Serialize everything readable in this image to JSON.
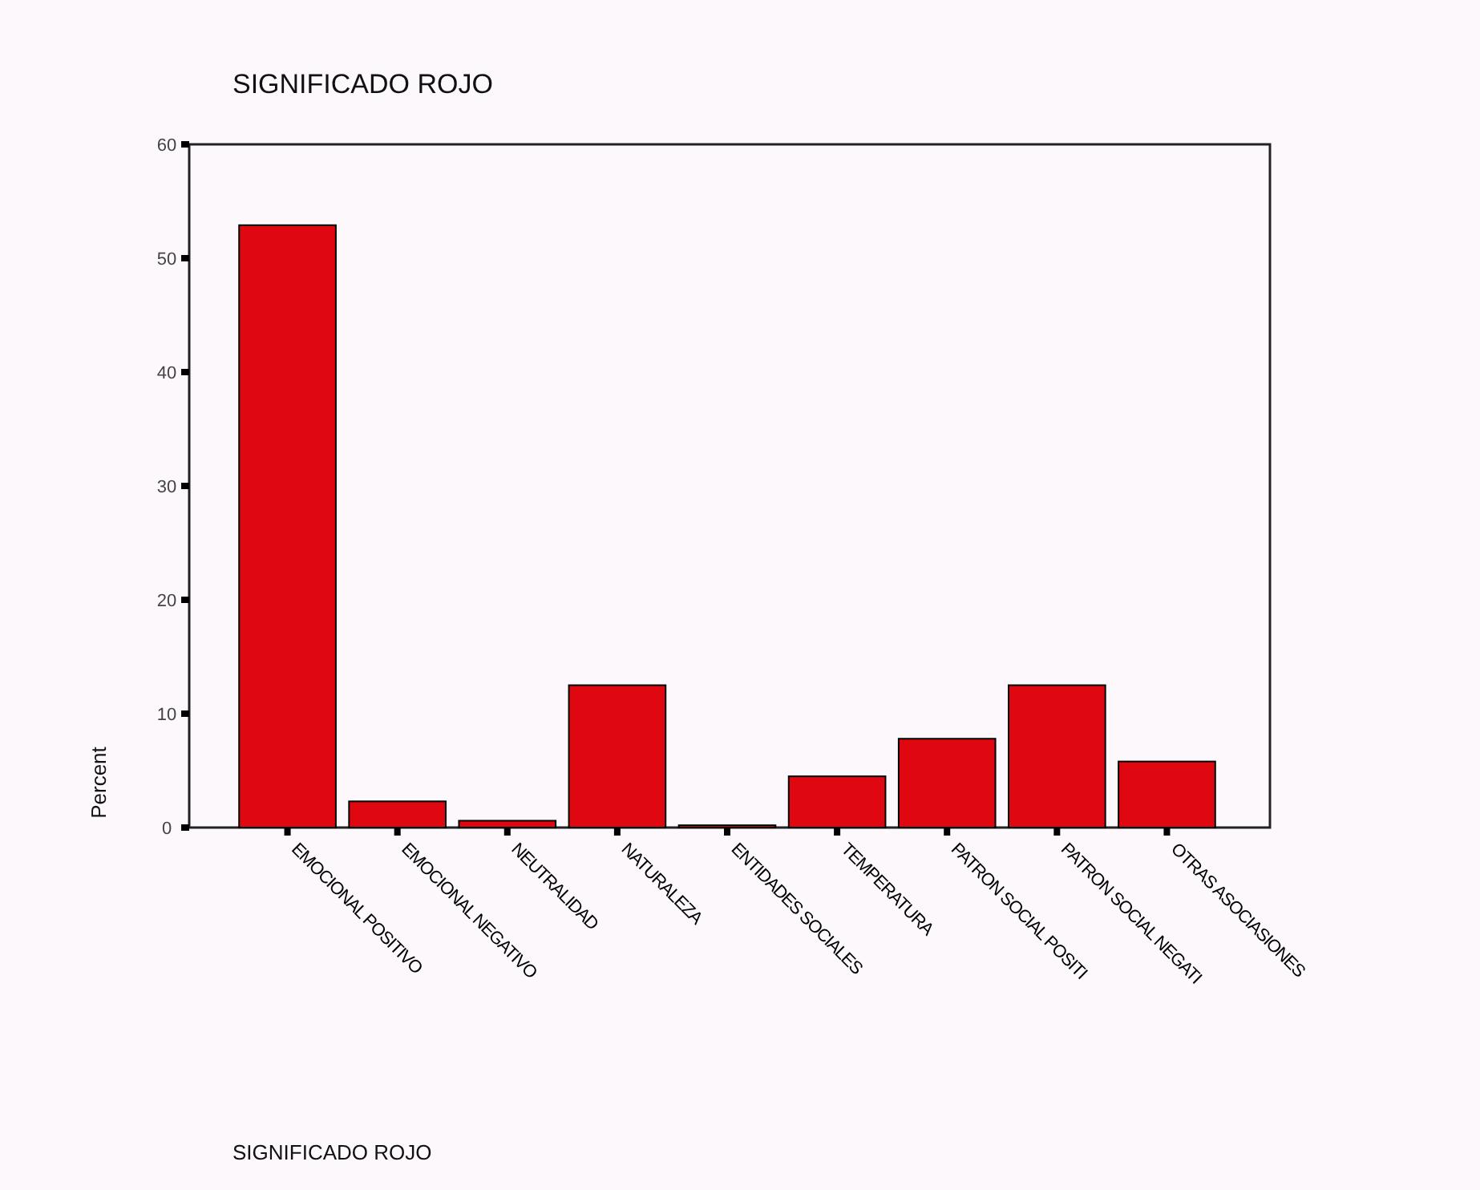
{
  "chart_data": {
    "type": "bar",
    "title": "SIGNIFICADO ROJO",
    "annotations": [
      "SIGNIFICADO ROJO"
    ],
    "ylabel": "Percent",
    "categories": [
      "EMOCIONAL POSITIVO",
      "EMOCIONAL NEGATIVO",
      "NEUTRALIDAD",
      "NATURALEZA",
      "ENTIDADES SOCIALES",
      "TEMPERATURA",
      "PATRON SOCIAL POSITI",
      "PATRON SOCIAL NEGATI",
      "OTRAS ASOCIASIONES"
    ],
    "values": [
      52.9,
      2.3,
      0.6,
      12.5,
      0.2,
      4.5,
      7.8,
      12.5,
      5.8
    ],
    "color": "#e00810",
    "ylim": [
      0,
      60
    ],
    "yticks": [
      0,
      10,
      20,
      30,
      40,
      50,
      60
    ],
    "grid": false
  }
}
